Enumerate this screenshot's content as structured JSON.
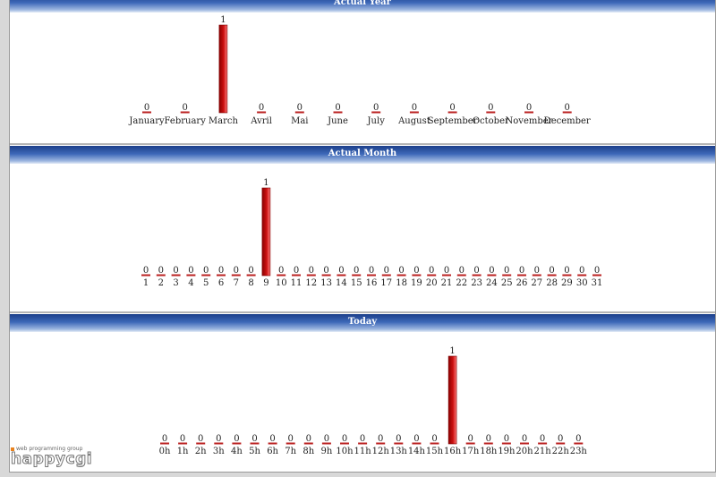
{
  "colors": {
    "bar": "#cc1111",
    "underline": "#bb2222",
    "header": "#2a55a8"
  },
  "logo": {
    "tagline": "web programming group",
    "wordmark": "happycgi"
  },
  "chart_data": [
    {
      "type": "bar",
      "title": "Actual Year",
      "categories": [
        "January",
        "February",
        "March",
        "Avril",
        "Mai",
        "June",
        "July",
        "August",
        "September",
        "October",
        "November",
        "December"
      ],
      "values": [
        0,
        0,
        1,
        0,
        0,
        0,
        0,
        0,
        0,
        0,
        0,
        0
      ],
      "ylim": [
        0,
        1
      ]
    },
    {
      "type": "bar",
      "title": "Actual Month",
      "categories": [
        "1",
        "2",
        "3",
        "4",
        "5",
        "6",
        "7",
        "8",
        "9",
        "10",
        "11",
        "12",
        "13",
        "14",
        "15",
        "16",
        "17",
        "18",
        "19",
        "20",
        "21",
        "22",
        "23",
        "24",
        "25",
        "26",
        "27",
        "28",
        "29",
        "30",
        "31"
      ],
      "values": [
        0,
        0,
        0,
        0,
        0,
        0,
        0,
        0,
        1,
        0,
        0,
        0,
        0,
        0,
        0,
        0,
        0,
        0,
        0,
        0,
        0,
        0,
        0,
        0,
        0,
        0,
        0,
        0,
        0,
        0,
        0
      ],
      "ylim": [
        0,
        1
      ]
    },
    {
      "type": "bar",
      "title": "Today",
      "categories": [
        "0h",
        "1h",
        "2h",
        "3h",
        "4h",
        "5h",
        "6h",
        "7h",
        "8h",
        "9h",
        "10h",
        "11h",
        "12h",
        "13h",
        "14h",
        "15h",
        "16h",
        "17h",
        "18h",
        "19h",
        "20h",
        "21h",
        "22h",
        "23h"
      ],
      "values": [
        0,
        0,
        0,
        0,
        0,
        0,
        0,
        0,
        0,
        0,
        0,
        0,
        0,
        0,
        0,
        0,
        1,
        0,
        0,
        0,
        0,
        0,
        0,
        0
      ],
      "ylim": [
        0,
        1
      ]
    }
  ]
}
